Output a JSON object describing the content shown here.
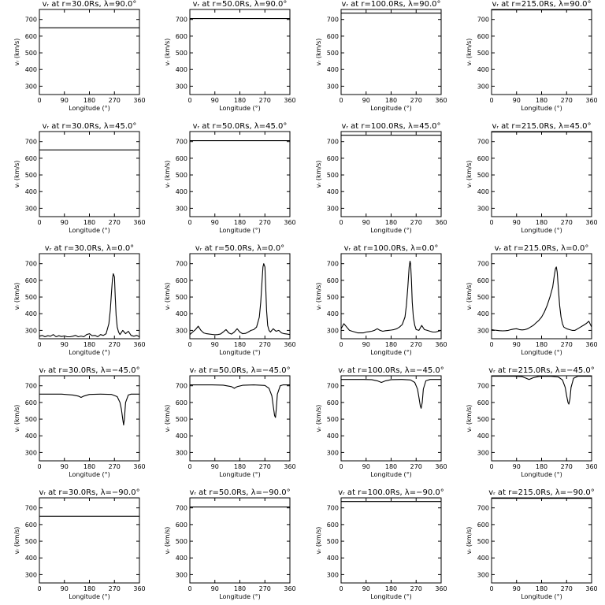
{
  "chart_data": [
    {
      "type": "line",
      "title": "vᵣ at r=30.0Rs, λ=90.0°",
      "xlabel": "Longitude (°)",
      "ylabel": "vᵣ (km/s)",
      "xlim": [
        0,
        360
      ],
      "ylim": [
        250,
        760
      ],
      "xticks": [
        0,
        90,
        180,
        270,
        360
      ],
      "yticks": [
        300,
        400,
        500,
        600,
        700
      ],
      "series": [
        {
          "x": [
            0,
            360
          ],
          "y": [
            650,
            650
          ]
        }
      ]
    },
    {
      "type": "line",
      "title": "vᵣ at r=50.0Rs, λ=90.0°",
      "xlabel": "Longitude (°)",
      "ylabel": "vᵣ (km/s)",
      "xlim": [
        0,
        360
      ],
      "ylim": [
        250,
        760
      ],
      "xticks": [
        0,
        90,
        180,
        270,
        360
      ],
      "yticks": [
        300,
        400,
        500,
        600,
        700
      ],
      "series": [
        {
          "x": [
            0,
            360
          ],
          "y": [
            705,
            705
          ]
        }
      ]
    },
    {
      "type": "line",
      "title": "vᵣ at r=100.0Rs, λ=90.0°",
      "xlabel": "Longitude (°)",
      "ylabel": "vᵣ (km/s)",
      "xlim": [
        0,
        360
      ],
      "ylim": [
        250,
        760
      ],
      "xticks": [
        0,
        90,
        180,
        270,
        360
      ],
      "yticks": [
        300,
        400,
        500,
        600,
        700
      ],
      "series": [
        {
          "x": [
            0,
            360
          ],
          "y": [
            738,
            738
          ]
        }
      ]
    },
    {
      "type": "line",
      "title": "vᵣ at r=215.0Rs, λ=90.0°",
      "xlabel": "Longitude (°)",
      "ylabel": "vᵣ (km/s)",
      "xlim": [
        0,
        360
      ],
      "ylim": [
        250,
        760
      ],
      "xticks": [
        0,
        90,
        180,
        270,
        360
      ],
      "yticks": [
        300,
        400,
        500,
        600,
        700
      ],
      "series": [
        {
          "x": [
            0,
            360
          ],
          "y": [
            757,
            757
          ]
        }
      ]
    },
    {
      "type": "line",
      "title": "vᵣ at r=30.0Rs, λ=45.0°",
      "xlabel": "Longitude (°)",
      "ylabel": "vᵣ (km/s)",
      "xlim": [
        0,
        360
      ],
      "ylim": [
        250,
        760
      ],
      "xticks": [
        0,
        90,
        180,
        270,
        360
      ],
      "yticks": [
        300,
        400,
        500,
        600,
        700
      ],
      "series": [
        {
          "x": [
            0,
            360
          ],
          "y": [
            650,
            650
          ]
        }
      ]
    },
    {
      "type": "line",
      "title": "vᵣ at r=50.0Rs, λ=45.0°",
      "xlabel": "Longitude (°)",
      "ylabel": "vᵣ (km/s)",
      "xlim": [
        0,
        360
      ],
      "ylim": [
        250,
        760
      ],
      "xticks": [
        0,
        90,
        180,
        270,
        360
      ],
      "yticks": [
        300,
        400,
        500,
        600,
        700
      ],
      "series": [
        {
          "x": [
            0,
            360
          ],
          "y": [
            705,
            705
          ]
        }
      ]
    },
    {
      "type": "line",
      "title": "vᵣ at r=100.0Rs, λ=45.0°",
      "xlabel": "Longitude (°)",
      "ylabel": "vᵣ (km/s)",
      "xlim": [
        0,
        360
      ],
      "ylim": [
        250,
        760
      ],
      "xticks": [
        0,
        90,
        180,
        270,
        360
      ],
      "yticks": [
        300,
        400,
        500,
        600,
        700
      ],
      "series": [
        {
          "x": [
            0,
            360
          ],
          "y": [
            738,
            738
          ]
        }
      ]
    },
    {
      "type": "line",
      "title": "vᵣ at r=215.0Rs, λ=45.0°",
      "xlabel": "Longitude (°)",
      "ylabel": "vᵣ (km/s)",
      "xlim": [
        0,
        360
      ],
      "ylim": [
        250,
        760
      ],
      "xticks": [
        0,
        90,
        180,
        270,
        360
      ],
      "yticks": [
        300,
        400,
        500,
        600,
        700
      ],
      "series": [
        {
          "x": [
            0,
            360
          ],
          "y": [
            757,
            757
          ]
        }
      ]
    },
    {
      "type": "line",
      "title": "vᵣ at r=30.0Rs, λ=0.0°",
      "xlabel": "Longitude (°)",
      "ylabel": "vᵣ (km/s)",
      "xlim": [
        0,
        360
      ],
      "ylim": [
        250,
        760
      ],
      "xticks": [
        0,
        90,
        180,
        270,
        360
      ],
      "yticks": [
        300,
        400,
        500,
        600,
        700
      ],
      "series": [
        {
          "x": [
            0,
            10,
            20,
            30,
            40,
            50,
            60,
            70,
            80,
            90,
            100,
            110,
            120,
            130,
            140,
            150,
            160,
            170,
            180,
            190,
            200,
            210,
            220,
            230,
            240,
            250,
            255,
            260,
            263,
            266,
            270,
            273,
            276,
            280,
            285,
            290,
            300,
            310,
            320,
            330,
            340,
            350,
            360
          ],
          "y": [
            265,
            270,
            262,
            268,
            265,
            275,
            262,
            268,
            263,
            267,
            262,
            262,
            265,
            270,
            262,
            266,
            262,
            275,
            280,
            268,
            270,
            262,
            275,
            270,
            280,
            340,
            420,
            540,
            610,
            640,
            620,
            500,
            390,
            320,
            290,
            275,
            300,
            280,
            295,
            270,
            265,
            270,
            262
          ]
        }
      ]
    },
    {
      "type": "line",
      "title": "vᵣ at r=50.0Rs, λ=0.0°",
      "xlabel": "Longitude (°)",
      "ylabel": "vᵣ (km/s)",
      "xlim": [
        0,
        360
      ],
      "ylim": [
        250,
        760
      ],
      "xticks": [
        0,
        90,
        180,
        270,
        360
      ],
      "yticks": [
        300,
        400,
        500,
        600,
        700
      ],
      "series": [
        {
          "x": [
            0,
            10,
            20,
            30,
            40,
            50,
            60,
            70,
            80,
            90,
            100,
            110,
            120,
            130,
            140,
            150,
            160,
            170,
            180,
            190,
            200,
            210,
            220,
            230,
            240,
            250,
            255,
            260,
            263,
            266,
            270,
            273,
            276,
            280,
            285,
            290,
            300,
            310,
            320,
            330,
            340,
            350,
            360
          ],
          "y": [
            275,
            290,
            305,
            325,
            300,
            285,
            280,
            278,
            276,
            274,
            275,
            278,
            290,
            305,
            285,
            278,
            290,
            310,
            290,
            280,
            282,
            290,
            300,
            305,
            320,
            380,
            470,
            600,
            680,
            700,
            680,
            560,
            420,
            330,
            300,
            290,
            310,
            295,
            300,
            285,
            280,
            278,
            275
          ]
        }
      ]
    },
    {
      "type": "line",
      "title": "vᵣ at r=100.0Rs, λ=0.0°",
      "xlabel": "Longitude (°)",
      "ylabel": "vᵣ (km/s)",
      "xlim": [
        0,
        360
      ],
      "ylim": [
        250,
        760
      ],
      "xticks": [
        0,
        90,
        180,
        270,
        360
      ],
      "yticks": [
        300,
        400,
        500,
        600,
        700
      ],
      "series": [
        {
          "x": [
            0,
            10,
            20,
            30,
            40,
            50,
            60,
            70,
            80,
            90,
            100,
            110,
            120,
            130,
            140,
            150,
            160,
            170,
            180,
            190,
            200,
            210,
            220,
            230,
            235,
            240,
            245,
            248,
            250,
            253,
            256,
            260,
            265,
            270,
            280,
            290,
            300,
            310,
            320,
            330,
            340,
            350,
            360
          ],
          "y": [
            310,
            340,
            320,
            300,
            295,
            290,
            285,
            285,
            285,
            290,
            292,
            295,
            300,
            310,
            300,
            295,
            298,
            300,
            302,
            305,
            310,
            320,
            335,
            380,
            450,
            560,
            680,
            715,
            700,
            600,
            470,
            380,
            330,
            305,
            300,
            330,
            305,
            300,
            295,
            290,
            290,
            295,
            300
          ]
        }
      ]
    },
    {
      "type": "line",
      "title": "vᵣ at r=215.0Rs, λ=0.0°",
      "xlabel": "Longitude (°)",
      "ylabel": "vᵣ (km/s)",
      "xlim": [
        0,
        360
      ],
      "ylim": [
        250,
        760
      ],
      "xticks": [
        0,
        90,
        180,
        270,
        360
      ],
      "yticks": [
        300,
        400,
        500,
        600,
        700
      ],
      "series": [
        {
          "x": [
            0,
            10,
            20,
            30,
            40,
            50,
            60,
            70,
            80,
            90,
            100,
            110,
            120,
            130,
            140,
            150,
            160,
            170,
            180,
            190,
            200,
            210,
            220,
            225,
            230,
            233,
            236,
            240,
            245,
            250,
            255,
            260,
            270,
            280,
            290,
            300,
            310,
            320,
            330,
            340,
            350,
            360
          ],
          "y": [
            305,
            302,
            300,
            298,
            297,
            298,
            300,
            305,
            308,
            310,
            305,
            303,
            305,
            310,
            320,
            330,
            345,
            360,
            380,
            410,
            450,
            500,
            560,
            620,
            670,
            680,
            650,
            560,
            450,
            380,
            340,
            320,
            310,
            305,
            300,
            300,
            310,
            320,
            330,
            340,
            355,
            320
          ]
        }
      ]
    },
    {
      "type": "line",
      "title": "vᵣ at r=30.0Rs, λ=−45.0°",
      "xlabel": "Longitude (°)",
      "ylabel": "vᵣ (km/s)",
      "xlim": [
        0,
        360
      ],
      "ylim": [
        250,
        760
      ],
      "xticks": [
        0,
        90,
        180,
        270,
        360
      ],
      "yticks": [
        300,
        400,
        500,
        600,
        700
      ],
      "series": [
        {
          "x": [
            0,
            40,
            80,
            120,
            140,
            150,
            160,
            180,
            220,
            260,
            280,
            290,
            295,
            300,
            303,
            306,
            310,
            320,
            330,
            345,
            360
          ],
          "y": [
            650,
            650,
            650,
            645,
            638,
            630,
            638,
            648,
            650,
            648,
            635,
            600,
            560,
            500,
            465,
            500,
            600,
            645,
            650,
            650,
            650
          ]
        }
      ]
    },
    {
      "type": "line",
      "title": "vᵣ at r=50.0Rs, λ=−45.0°",
      "xlabel": "Longitude (°)",
      "ylabel": "vᵣ (km/s)",
      "xlim": [
        0,
        360
      ],
      "ylim": [
        250,
        760
      ],
      "xticks": [
        0,
        90,
        180,
        270,
        360
      ],
      "yticks": [
        300,
        400,
        500,
        600,
        700
      ],
      "series": [
        {
          "x": [
            0,
            40,
            80,
            120,
            150,
            160,
            170,
            190,
            230,
            270,
            285,
            295,
            300,
            305,
            308,
            311,
            315,
            325,
            335,
            350,
            360
          ],
          "y": [
            705,
            705,
            705,
            704,
            695,
            685,
            695,
            703,
            705,
            702,
            685,
            640,
            580,
            520,
            510,
            560,
            650,
            700,
            705,
            705,
            705
          ]
        }
      ]
    },
    {
      "type": "line",
      "title": "vᵣ at r=100.0Rs, λ=−45.0°",
      "xlabel": "Longitude (°)",
      "ylabel": "vᵣ (km/s)",
      "xlim": [
        0,
        360
      ],
      "ylim": [
        250,
        760
      ],
      "xticks": [
        0,
        90,
        180,
        270,
        360
      ],
      "yticks": [
        300,
        400,
        500,
        600,
        700
      ],
      "series": [
        {
          "x": [
            0,
            40,
            80,
            110,
            130,
            145,
            160,
            180,
            220,
            250,
            265,
            275,
            280,
            285,
            288,
            292,
            296,
            305,
            320,
            340,
            360
          ],
          "y": [
            738,
            738,
            738,
            737,
            730,
            720,
            730,
            737,
            738,
            735,
            720,
            680,
            630,
            580,
            565,
            600,
            680,
            730,
            738,
            738,
            738
          ]
        }
      ]
    },
    {
      "type": "line",
      "title": "vᵣ at r=215.0Rs, λ=−45.0°",
      "xlabel": "Longitude (°)",
      "ylabel": "vᵣ (km/s)",
      "xlim": [
        0,
        360
      ],
      "ylim": [
        250,
        760
      ],
      "xticks": [
        0,
        90,
        180,
        270,
        360
      ],
      "yticks": [
        300,
        400,
        500,
        600,
        700
      ],
      "series": [
        {
          "x": [
            0,
            40,
            80,
            110,
            125,
            135,
            150,
            170,
            210,
            240,
            255,
            265,
            270,
            275,
            278,
            282,
            286,
            295,
            310,
            340,
            360
          ],
          "y": [
            757,
            757,
            757,
            755,
            745,
            738,
            748,
            756,
            757,
            753,
            735,
            690,
            640,
            600,
            590,
            620,
            690,
            745,
            757,
            757,
            757
          ]
        }
      ]
    },
    {
      "type": "line",
      "title": "vᵣ at r=30.0Rs, λ=−90.0°",
      "xlabel": "Longitude (°)",
      "ylabel": "vᵣ (km/s)",
      "xlim": [
        0,
        360
      ],
      "ylim": [
        250,
        760
      ],
      "xticks": [
        0,
        90,
        180,
        270,
        360
      ],
      "yticks": [
        300,
        400,
        500,
        600,
        700
      ],
      "series": [
        {
          "x": [
            0,
            360
          ],
          "y": [
            650,
            650
          ]
        }
      ]
    },
    {
      "type": "line",
      "title": "vᵣ at r=50.0Rs, λ=−90.0°",
      "xlabel": "Longitude (°)",
      "ylabel": "vᵣ (km/s)",
      "xlim": [
        0,
        360
      ],
      "ylim": [
        250,
        760
      ],
      "xticks": [
        0,
        90,
        180,
        270,
        360
      ],
      "yticks": [
        300,
        400,
        500,
        600,
        700
      ],
      "series": [
        {
          "x": [
            0,
            360
          ],
          "y": [
            705,
            705
          ]
        }
      ]
    },
    {
      "type": "line",
      "title": "vᵣ at r=100.0Rs, λ=−90.0°",
      "xlabel": "Longitude (°)",
      "ylabel": "vᵣ (km/s)",
      "xlim": [
        0,
        360
      ],
      "ylim": [
        250,
        760
      ],
      "xticks": [
        0,
        90,
        180,
        270,
        360
      ],
      "yticks": [
        300,
        400,
        500,
        600,
        700
      ],
      "series": [
        {
          "x": [
            0,
            360
          ],
          "y": [
            738,
            738
          ]
        }
      ]
    },
    {
      "type": "line",
      "title": "vᵣ at r=215.0Rs, λ=−90.0°",
      "xlabel": "Longitude (°)",
      "ylabel": "vᵣ (km/s)",
      "xlim": [
        0,
        360
      ],
      "ylim": [
        250,
        760
      ],
      "xticks": [
        0,
        90,
        180,
        270,
        360
      ],
      "yticks": [
        300,
        400,
        500,
        600,
        700
      ],
      "series": [
        {
          "x": [
            0,
            360
          ],
          "y": [
            757,
            757
          ]
        }
      ]
    }
  ]
}
